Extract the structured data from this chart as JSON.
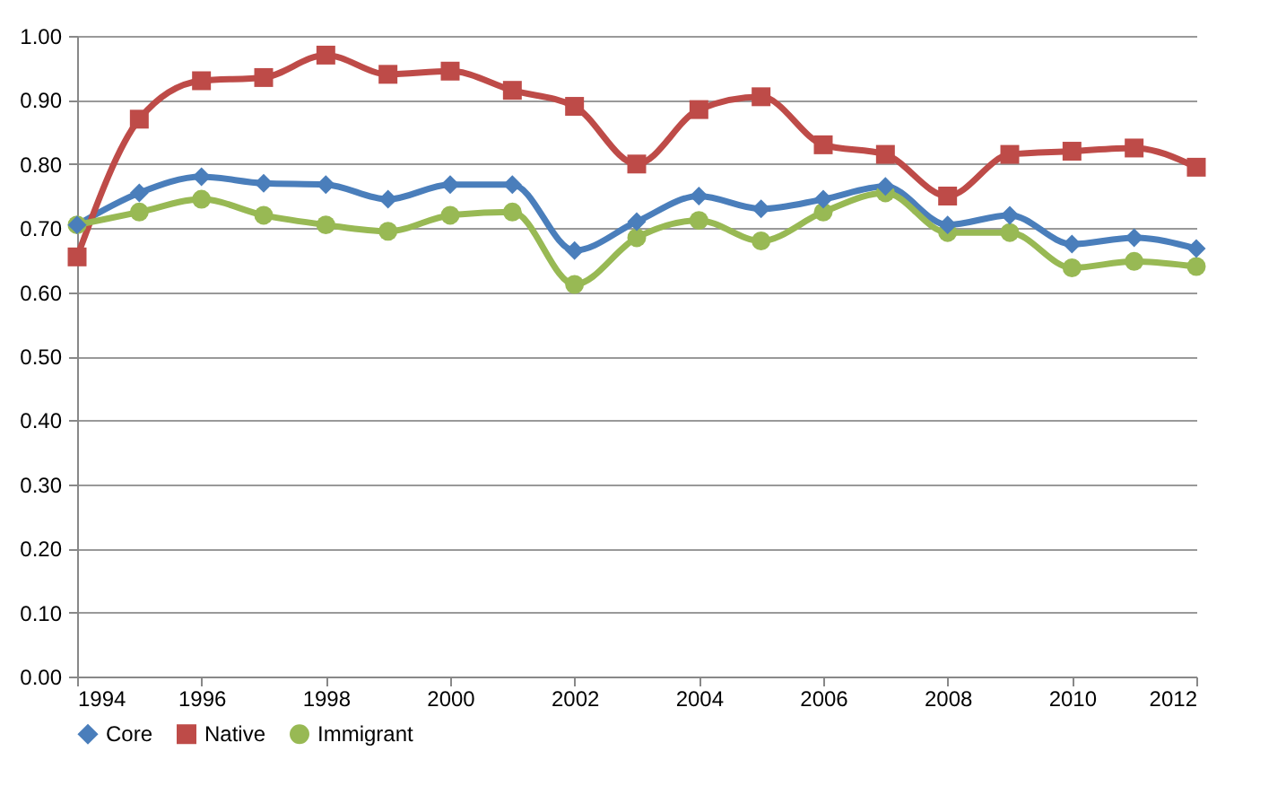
{
  "chart_data": {
    "type": "line",
    "x": [
      1994,
      1995,
      1996,
      1997,
      1998,
      1999,
      2000,
      2001,
      2002,
      2003,
      2004,
      2005,
      2006,
      2007,
      2008,
      2009,
      2010,
      2011,
      2012
    ],
    "series": [
      {
        "name": "Core",
        "color": "#4a7ebb",
        "marker": "diamond",
        "values": [
          0.705,
          0.755,
          0.78,
          0.77,
          0.768,
          0.745,
          0.768,
          0.768,
          0.665,
          0.71,
          0.75,
          0.73,
          0.745,
          0.765,
          0.705,
          0.72,
          0.675,
          0.685,
          0.668
        ]
      },
      {
        "name": "Native",
        "color": "#be4b48",
        "marker": "square",
        "values": [
          0.655,
          0.87,
          0.93,
          0.935,
          0.97,
          0.94,
          0.945,
          0.915,
          0.89,
          0.8,
          0.885,
          0.905,
          0.83,
          0.815,
          0.75,
          0.815,
          0.82,
          0.825,
          0.795
        ]
      },
      {
        "name": "Immigrant",
        "color": "#98b954",
        "marker": "circle",
        "values": [
          0.705,
          0.725,
          0.745,
          0.72,
          0.705,
          0.695,
          0.72,
          0.725,
          0.612,
          0.685,
          0.712,
          0.68,
          0.725,
          0.755,
          0.693,
          0.693,
          0.638,
          0.648,
          0.64
        ]
      }
    ],
    "xlim": [
      1994,
      2012
    ],
    "xticks": [
      1994,
      1996,
      1998,
      2000,
      2002,
      2004,
      2006,
      2008,
      2010,
      2012
    ],
    "ylim": [
      0,
      1
    ],
    "yticks": [
      {
        "value": 0,
        "label": "0.00"
      },
      {
        "value": 0.1,
        "label": "0.10"
      },
      {
        "value": 0.2,
        "label": "0.20"
      },
      {
        "value": 0.3,
        "label": "0.30"
      },
      {
        "value": 0.4,
        "label": "0.40"
      },
      {
        "value": 0.5,
        "label": "0.50"
      },
      {
        "value": 0.6,
        "label": "0.60"
      },
      {
        "value": 0.7,
        "label": "0.70"
      },
      {
        "value": 0.8,
        "label": "0.80"
      },
      {
        "value": 0.9,
        "label": "0.90"
      },
      {
        "value": 1,
        "label": "1.00"
      }
    ],
    "grid": "y",
    "legend": "bottom",
    "line_style": "solid"
  }
}
